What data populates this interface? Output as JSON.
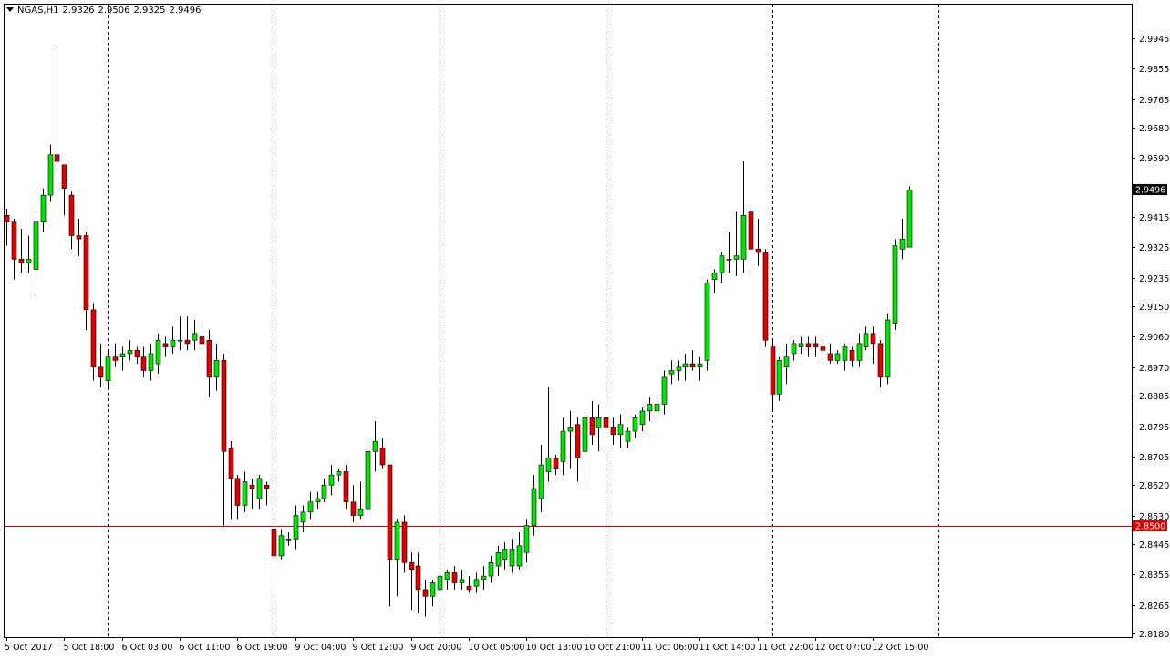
{
  "header": {
    "symbol": "NGAS,H1",
    "open": "2.9326",
    "high": "2.9506",
    "low": "2.9325",
    "close": "2.9496"
  },
  "colors": {
    "background": "#ffffff",
    "bull": "#00e600",
    "bear": "#e00000",
    "wick": "#000000",
    "hline": "#e00000",
    "current_price_bg": "#000000",
    "hline_label_bg": "#e00000"
  },
  "chart_data": {
    "type": "candlestick",
    "symbol": "NGAS",
    "timeframe": "H1",
    "ylim": [
      2.818,
      2.9994
    ],
    "y_ticks": [
      "2.9945",
      "2.9855",
      "2.9765",
      "2.9680",
      "2.9590",
      "2.9415",
      "2.9325",
      "2.9235",
      "2.9150",
      "2.9060",
      "2.8970",
      "2.8885",
      "2.8795",
      "2.8705",
      "2.8620",
      "2.8530",
      "2.8445",
      "2.8355",
      "2.8265",
      "2.8180"
    ],
    "x_labels": [
      {
        "i": 0,
        "label": "5 Oct 2017"
      },
      {
        "i": 8,
        "label": "5 Oct 18:00"
      },
      {
        "i": 16,
        "label": "6 Oct 03:00"
      },
      {
        "i": 24,
        "label": "6 Oct 11:00"
      },
      {
        "i": 32,
        "label": "6 Oct 19:00"
      },
      {
        "i": 40,
        "label": "9 Oct 04:00"
      },
      {
        "i": 48,
        "label": "9 Oct 12:00"
      },
      {
        "i": 56,
        "label": "9 Oct 20:00"
      },
      {
        "i": 64,
        "label": "10 Oct 05:00"
      },
      {
        "i": 72,
        "label": "10 Oct 13:00"
      },
      {
        "i": 80,
        "label": "10 Oct 21:00"
      },
      {
        "i": 88,
        "label": "11 Oct 06:00"
      },
      {
        "i": 96,
        "label": "11 Oct 14:00"
      },
      {
        "i": 104,
        "label": "11 Oct 22:00"
      },
      {
        "i": 112,
        "label": "12 Oct 07:00"
      },
      {
        "i": 120,
        "label": "12 Oct 15:00"
      }
    ],
    "period_separators": [
      14,
      37,
      60,
      83,
      106,
      129
    ],
    "horizontal_line": {
      "price": 2.85,
      "label": "2.8500"
    },
    "current_price": {
      "price": 2.9496,
      "label": "2.9496"
    },
    "ohlc": [
      [
        2.942,
        2.944,
        2.933,
        2.94
      ],
      [
        2.94,
        2.941,
        2.923,
        2.929
      ],
      [
        2.929,
        2.938,
        2.925,
        2.928
      ],
      [
        2.928,
        2.936,
        2.925,
        2.929
      ],
      [
        2.926,
        2.942,
        2.918,
        2.94
      ],
      [
        2.94,
        2.95,
        2.937,
        2.948
      ],
      [
        2.948,
        2.963,
        2.946,
        2.96
      ],
      [
        2.96,
        2.991,
        2.955,
        2.958
      ],
      [
        2.957,
        2.957,
        2.942,
        2.95
      ],
      [
        2.948,
        2.949,
        2.932,
        2.936
      ],
      [
        2.936,
        2.941,
        2.93,
        2.935
      ],
      [
        2.936,
        2.937,
        2.908,
        2.914
      ],
      [
        2.914,
        2.916,
        2.893,
        2.897
      ],
      [
        2.897,
        2.904,
        2.891,
        2.894
      ],
      [
        2.893,
        2.902,
        2.891,
        2.9
      ],
      [
        2.9,
        2.904,
        2.897,
        2.899
      ],
      [
        2.9,
        2.903,
        2.896,
        2.901
      ],
      [
        2.901,
        2.905,
        2.899,
        2.902
      ],
      [
        2.902,
        2.903,
        2.898,
        2.9
      ],
      [
        2.9,
        2.903,
        2.894,
        2.896
      ],
      [
        2.896,
        2.904,
        2.893,
        2.901
      ],
      [
        2.898,
        2.907,
        2.895,
        2.905
      ],
      [
        2.904,
        2.906,
        2.9,
        2.903
      ],
      [
        2.903,
        2.909,
        2.901,
        2.905
      ],
      [
        2.905,
        2.912,
        2.902,
        2.905
      ],
      [
        2.905,
        2.912,
        2.902,
        2.904
      ],
      [
        2.905,
        2.911,
        2.902,
        2.907
      ],
      [
        2.906,
        2.91,
        2.899,
        2.904
      ],
      [
        2.905,
        2.908,
        2.888,
        2.894
      ],
      [
        2.894,
        2.904,
        2.89,
        2.899
      ],
      [
        2.899,
        2.901,
        2.85,
        2.872
      ],
      [
        2.873,
        2.875,
        2.852,
        2.864
      ],
      [
        2.864,
        2.865,
        2.852,
        2.856
      ],
      [
        2.856,
        2.866,
        2.854,
        2.863
      ],
      [
        2.862,
        2.864,
        2.855,
        2.861
      ],
      [
        2.858,
        2.865,
        2.855,
        2.864
      ],
      [
        2.862,
        2.863,
        2.856,
        2.861
      ],
      [
        2.849,
        2.852,
        2.83,
        2.841
      ],
      [
        2.841,
        2.849,
        2.84,
        2.847
      ],
      [
        2.846,
        2.848,
        2.844,
        2.846
      ],
      [
        2.846,
        2.856,
        2.843,
        2.853
      ],
      [
        2.851,
        2.856,
        2.848,
        2.854
      ],
      [
        2.854,
        2.86,
        2.852,
        2.857
      ],
      [
        2.857,
        2.86,
        2.855,
        2.858
      ],
      [
        2.858,
        2.864,
        2.857,
        2.862
      ],
      [
        2.862,
        2.868,
        2.859,
        2.865
      ],
      [
        2.865,
        2.867,
        2.863,
        2.866
      ],
      [
        2.866,
        2.868,
        2.855,
        2.857
      ],
      [
        2.857,
        2.862,
        2.851,
        2.853
      ],
      [
        2.853,
        2.863,
        2.852,
        2.855
      ],
      [
        2.855,
        2.875,
        2.853,
        2.872
      ],
      [
        2.872,
        2.881,
        2.866,
        2.875
      ],
      [
        2.873,
        2.876,
        2.867,
        2.868
      ],
      [
        2.868,
        2.868,
        2.826,
        2.84
      ],
      [
        2.84,
        2.852,
        2.829,
        2.851
      ],
      [
        2.851,
        2.853,
        2.836,
        2.839
      ],
      [
        2.839,
        2.842,
        2.825,
        2.837
      ],
      [
        2.838,
        2.842,
        2.824,
        2.831
      ],
      [
        2.831,
        2.834,
        2.823,
        2.829
      ],
      [
        2.829,
        2.834,
        2.826,
        2.833
      ],
      [
        2.831,
        2.836,
        2.829,
        2.835
      ],
      [
        2.834,
        2.837,
        2.831,
        2.836
      ],
      [
        2.836,
        2.838,
        2.831,
        2.833
      ],
      [
        2.833,
        2.837,
        2.831,
        2.834
      ],
      [
        2.832,
        2.835,
        2.83,
        2.831
      ],
      [
        2.832,
        2.836,
        2.83,
        2.834
      ],
      [
        2.834,
        2.838,
        2.831,
        2.835
      ],
      [
        2.835,
        2.841,
        2.833,
        2.839
      ],
      [
        2.838,
        2.844,
        2.835,
        2.842
      ],
      [
        2.84,
        2.845,
        2.837,
        2.843
      ],
      [
        2.838,
        2.846,
        2.836,
        2.843
      ],
      [
        2.838,
        2.848,
        2.837,
        2.844
      ],
      [
        2.842,
        2.852,
        2.839,
        2.85
      ],
      [
        2.85,
        2.865,
        2.847,
        2.861
      ],
      [
        2.858,
        2.874,
        2.854,
        2.868
      ],
      [
        2.866,
        2.891,
        2.863,
        2.87
      ],
      [
        2.87,
        2.871,
        2.865,
        2.867
      ],
      [
        2.869,
        2.882,
        2.865,
        2.878
      ],
      [
        2.878,
        2.884,
        2.867,
        2.879
      ],
      [
        2.88,
        2.882,
        2.863,
        2.87
      ],
      [
        2.872,
        2.883,
        2.863,
        2.882
      ],
      [
        2.882,
        2.887,
        2.874,
        2.877
      ],
      [
        2.879,
        2.886,
        2.872,
        2.882
      ],
      [
        2.882,
        2.886,
        2.874,
        2.879
      ],
      [
        2.879,
        2.882,
        2.874,
        2.877
      ],
      [
        2.877,
        2.883,
        2.873,
        2.88
      ],
      [
        2.875,
        2.879,
        2.873,
        2.878
      ],
      [
        2.878,
        2.883,
        2.876,
        2.882
      ],
      [
        2.88,
        2.885,
        2.878,
        2.884
      ],
      [
        2.884,
        2.888,
        2.881,
        2.886
      ],
      [
        2.884,
        2.888,
        2.883,
        2.886
      ],
      [
        2.886,
        2.896,
        2.883,
        2.894
      ],
      [
        2.895,
        2.899,
        2.892,
        2.896
      ],
      [
        2.896,
        2.899,
        2.893,
        2.897
      ],
      [
        2.897,
        2.901,
        2.893,
        2.898
      ],
      [
        2.898,
        2.902,
        2.896,
        2.897
      ],
      [
        2.897,
        2.9,
        2.893,
        2.898
      ],
      [
        2.899,
        2.923,
        2.896,
        2.922
      ],
      [
        2.923,
        2.926,
        2.919,
        2.925
      ],
      [
        2.925,
        2.931,
        2.922,
        2.93
      ],
      [
        2.929,
        2.937,
        2.925,
        2.929
      ],
      [
        2.929,
        2.943,
        2.924,
        2.93
      ],
      [
        2.929,
        2.958,
        2.925,
        2.942
      ],
      [
        2.943,
        2.944,
        2.925,
        2.932
      ],
      [
        2.932,
        2.941,
        2.927,
        2.931
      ],
      [
        2.931,
        2.932,
        2.903,
        2.905
      ],
      [
        2.903,
        2.905,
        2.884,
        2.889
      ],
      [
        2.889,
        2.9,
        2.887,
        2.899
      ],
      [
        2.897,
        2.904,
        2.892,
        2.9
      ],
      [
        2.901,
        2.905,
        2.899,
        2.904
      ],
      [
        2.903,
        2.906,
        2.901,
        2.904
      ],
      [
        2.904,
        2.906,
        2.9,
        2.903
      ],
      [
        2.904,
        2.906,
        2.9,
        2.903
      ],
      [
        2.903,
        2.906,
        2.898,
        2.902
      ],
      [
        2.901,
        2.904,
        2.898,
        2.899
      ],
      [
        2.899,
        2.902,
        2.898,
        2.901
      ],
      [
        2.899,
        2.904,
        2.896,
        2.903
      ],
      [
        2.902,
        2.903,
        2.897,
        2.899
      ],
      [
        2.899,
        2.907,
        2.897,
        2.904
      ],
      [
        2.903,
        2.909,
        2.902,
        2.907
      ],
      [
        2.907,
        2.909,
        2.898,
        2.904
      ],
      [
        2.904,
        2.905,
        2.891,
        2.894
      ],
      [
        2.894,
        2.913,
        2.892,
        2.911
      ],
      [
        2.91,
        2.935,
        2.908,
        2.933
      ],
      [
        2.932,
        2.941,
        2.929,
        2.935
      ],
      [
        2.9326,
        2.9506,
        2.9325,
        2.9496
      ]
    ]
  }
}
